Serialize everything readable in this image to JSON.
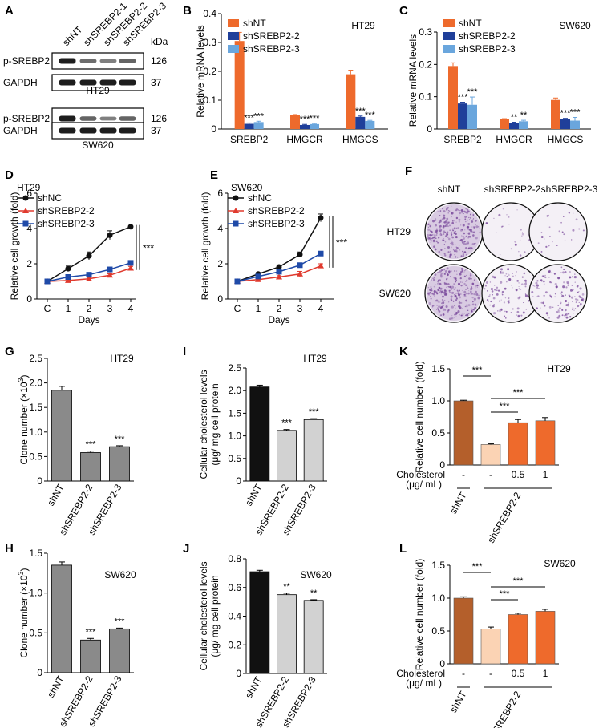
{
  "colors": {
    "orange": "#ee6a2c",
    "navy": "#1f3f9a",
    "light_blue": "#6aa6dd",
    "gray_bar": "#8a8a8a",
    "black_bar": "#111111",
    "light_gray_bar": "#d2d2d2",
    "brown_bar": "#b45f2b",
    "peach_bar": "#fbd3b4",
    "orange_bar": "#ee6a2c",
    "line_black": "#111111",
    "line_red": "#e03a2e",
    "line_blue": "#1f4aa8",
    "colony_purple": "#7a4a9c"
  },
  "panels": {
    "A": {
      "label": "A",
      "lanes": [
        "shNT",
        "shSREBP2-1",
        "shSREBP2-2",
        "shSREBP2-3"
      ],
      "kda_label": "kDa",
      "blots": [
        {
          "cell_line": "HT29",
          "rows": [
            {
              "label": "p-SREBP2",
              "kda": "126",
              "intensities": [
                1.0,
                0.55,
                0.45,
                0.6
              ]
            },
            {
              "label": "GAPDH",
              "kda": "37",
              "intensities": [
                1.0,
                1.0,
                1.0,
                1.0
              ]
            }
          ]
        },
        {
          "cell_line": "SW620",
          "rows": [
            {
              "label": "p-SREBP2",
              "kda": "126",
              "intensities": [
                1.0,
                0.6,
                0.45,
                0.6
              ]
            },
            {
              "label": "GAPDH",
              "kda": "37",
              "intensities": [
                1.0,
                1.0,
                1.0,
                1.0
              ]
            }
          ]
        }
      ]
    },
    "F": {
      "label": "F",
      "columns": [
        "shNT",
        "shSREBP2-2",
        "shSREBP2-3"
      ],
      "rows": [
        "HT29",
        "SW620"
      ],
      "densities": [
        [
          0.95,
          0.05,
          0.03
        ],
        [
          0.95,
          0.35,
          0.45
        ]
      ]
    }
  },
  "chart_data": [
    {
      "panel": "B",
      "type": "bar",
      "title": "HT29",
      "ylabel": "Relative mRNA levels",
      "ylim": [
        0,
        0.4
      ],
      "yticks": [
        "0",
        "0.1",
        "0.2",
        "0.3",
        "0.4"
      ],
      "categories": [
        "SREBP2",
        "HMGCR",
        "HMGCS"
      ],
      "legend": "top-left",
      "series": [
        {
          "name": "shNT",
          "color": "#ee6a2c",
          "values": [
            0.305,
            0.048,
            0.19
          ],
          "errors": [
            0.03,
            0.002,
            0.014
          ],
          "sig": [
            "",
            "",
            ""
          ]
        },
        {
          "name": "shSREBP2-2",
          "color": "#1f3f9a",
          "values": [
            0.018,
            0.014,
            0.042
          ],
          "errors": [
            0.003,
            0.002,
            0.003
          ],
          "sig": [
            "***",
            "***",
            "***"
          ]
        },
        {
          "name": "shSREBP2-3",
          "color": "#6aa6dd",
          "values": [
            0.024,
            0.017,
            0.028
          ],
          "errors": [
            0.003,
            0.002,
            0.002
          ],
          "sig": [
            "***",
            "***",
            "***"
          ]
        }
      ]
    },
    {
      "panel": "C",
      "type": "bar",
      "title": "SW620",
      "ylabel": "Relative mRNA levels",
      "ylim": [
        0,
        0.3
      ],
      "yticks": [
        "0",
        "0.1",
        "0.2",
        "0.3"
      ],
      "categories": [
        "SREBP2",
        "HMGCR",
        "HMGCS"
      ],
      "legend": "top-left",
      "series": [
        {
          "name": "shNT",
          "color": "#ee6a2c",
          "values": [
            0.195,
            0.03,
            0.09
          ],
          "errors": [
            0.01,
            0.002,
            0.006
          ],
          "sig": [
            "",
            "",
            ""
          ]
        },
        {
          "name": "shSREBP2-2",
          "color": "#1f3f9a",
          "values": [
            0.079,
            0.019,
            0.03
          ],
          "errors": [
            0.004,
            0.002,
            0.003
          ],
          "sig": [
            "***",
            "**",
            "***"
          ]
        },
        {
          "name": "shSREBP2-3",
          "color": "#6aa6dd",
          "values": [
            0.075,
            0.024,
            0.026
          ],
          "errors": [
            0.024,
            0.003,
            0.01
          ],
          "sig": [
            "***",
            "**",
            "***"
          ]
        }
      ]
    },
    {
      "panel": "D",
      "type": "line",
      "title": "HT29",
      "xlabel": "Days",
      "ylabel": "Relative cell growth (fold)",
      "x": [
        "C",
        "1",
        "2",
        "3",
        "4"
      ],
      "ylim": [
        0,
        6
      ],
      "yticks": [
        "0",
        "2",
        "4",
        "6"
      ],
      "legend": "top-left",
      "sig": "***",
      "series": [
        {
          "name": "shNC",
          "color": "#111111",
          "marker": "circle",
          "values": [
            1.0,
            1.72,
            2.45,
            3.62,
            4.1
          ],
          "errors": [
            0.05,
            0.15,
            0.22,
            0.25,
            0.15
          ]
        },
        {
          "name": "shSREBP2-2",
          "color": "#e03a2e",
          "marker": "triangle",
          "values": [
            1.0,
            1.05,
            1.15,
            1.35,
            1.75
          ],
          "errors": [
            0.03,
            0.05,
            0.06,
            0.08,
            0.1
          ]
        },
        {
          "name": "shSREBP2-3",
          "color": "#1f4aa8",
          "marker": "square",
          "values": [
            1.0,
            1.25,
            1.38,
            1.68,
            2.05
          ],
          "errors": [
            0.03,
            0.05,
            0.06,
            0.08,
            0.06
          ]
        }
      ]
    },
    {
      "panel": "E",
      "type": "line",
      "title": "SW620",
      "xlabel": "Days",
      "ylabel": "Relative cell growth (fold)",
      "x": [
        "C",
        "1",
        "2",
        "3",
        "4"
      ],
      "ylim": [
        0,
        6
      ],
      "yticks": [
        "0",
        "2",
        "4",
        "6"
      ],
      "legend": "top-left",
      "sig": "***",
      "series": [
        {
          "name": "shNC",
          "color": "#111111",
          "marker": "circle",
          "values": [
            1.0,
            1.42,
            1.82,
            2.52,
            4.6
          ],
          "errors": [
            0.04,
            0.08,
            0.1,
            0.15,
            0.22
          ]
        },
        {
          "name": "shSREBP2-2",
          "color": "#e03a2e",
          "marker": "triangle",
          "values": [
            1.0,
            1.1,
            1.25,
            1.42,
            1.88
          ],
          "errors": [
            0.03,
            0.05,
            0.08,
            0.15,
            0.12
          ]
        },
        {
          "name": "shSREBP2-3",
          "color": "#1f4aa8",
          "marker": "square",
          "values": [
            1.0,
            1.28,
            1.55,
            1.92,
            2.58
          ],
          "errors": [
            0.03,
            0.06,
            0.07,
            0.12,
            0.08
          ]
        }
      ]
    },
    {
      "panel": "G",
      "type": "bar",
      "title": "HT29",
      "ylabel": "Clone number (×10",
      "ylabel_sup": "3",
      "ylabel_end": ")",
      "ylim": [
        0,
        2.5
      ],
      "yticks": [
        "0",
        "0.5",
        "1.0",
        "1.5",
        "2.0",
        "2.5"
      ],
      "categories": [
        "shNT",
        "shSREBP2-2",
        "shSREBP2-3"
      ],
      "values": [
        1.85,
        0.58,
        0.7
      ],
      "errors": [
        0.08,
        0.03,
        0.02
      ],
      "colors": [
        "#8a8a8a",
        "#8a8a8a",
        "#8a8a8a"
      ],
      "sig": [
        "",
        "***",
        "***"
      ]
    },
    {
      "panel": "H",
      "type": "bar",
      "title": "SW620",
      "ylabel": "Clone number (×10",
      "ylabel_sup": "3",
      "ylabel_end": ")",
      "ylim": [
        0,
        1.5
      ],
      "yticks": [
        "0",
        "0.5",
        "1.0",
        "1.5"
      ],
      "categories": [
        "shNT",
        "shSREBP2-2",
        "shSREBP2-3"
      ],
      "values": [
        1.35,
        0.41,
        0.55
      ],
      "errors": [
        0.04,
        0.02,
        0.01
      ],
      "colors": [
        "#8a8a8a",
        "#8a8a8a",
        "#8a8a8a"
      ],
      "sig": [
        "",
        "***",
        "***"
      ]
    },
    {
      "panel": "I",
      "type": "bar",
      "title": "HT29",
      "ylabel": "Cellular cholesterol levels",
      "ylabel2": "(μg/ mg cell protein",
      "ylim": [
        0,
        2.5
      ],
      "yticks": [
        "0",
        "0.5",
        "1.0",
        "1.5",
        "2.0",
        "2.5"
      ],
      "categories": [
        "shNT",
        "shSREBP2-2",
        "shSREBP2-3"
      ],
      "values": [
        2.08,
        1.12,
        1.36
      ],
      "errors": [
        0.04,
        0.02,
        0.02
      ],
      "colors": [
        "#111111",
        "#d2d2d2",
        "#d2d2d2"
      ],
      "sig": [
        "",
        "***",
        "***"
      ]
    },
    {
      "panel": "J",
      "type": "bar",
      "title": "SW620",
      "ylabel": "Cellular cholesterol levels",
      "ylabel2": "(μg/ mg cell protein",
      "ylim": [
        0,
        0.8
      ],
      "yticks": [
        "0",
        "0.2",
        "0.4",
        "0.6",
        "0.8"
      ],
      "categories": [
        "shNT",
        "shSREBP2-2",
        "shSREBP2-3"
      ],
      "values": [
        0.71,
        0.55,
        0.51
      ],
      "errors": [
        0.01,
        0.01,
        0.005
      ],
      "colors": [
        "#111111",
        "#d2d2d2",
        "#d2d2d2"
      ],
      "sig": [
        "",
        "**",
        "**"
      ]
    },
    {
      "panel": "K",
      "type": "bar",
      "title": "HT29",
      "ylabel": "Relative cell number (fold)",
      "ylim": [
        0,
        1.5
      ],
      "yticks": [
        "0",
        "0.5",
        "1.0",
        "1.5"
      ],
      "categories": [
        "",
        "",
        "",
        ""
      ],
      "values": [
        1.0,
        0.32,
        0.66,
        0.69
      ],
      "errors": [
        0.01,
        0.01,
        0.05,
        0.05
      ],
      "colors": [
        "#b45f2b",
        "#fbd3b4",
        "#ee6a2c",
        "#ee6a2c"
      ],
      "cholesterol_label": "Cholesterol",
      "cholesterol_unit": "(μg/ mL)",
      "cholesterol_values": [
        "-",
        "-",
        "0.5",
        "1"
      ],
      "group_labels": [
        "shNT",
        "shSREBP2-2"
      ],
      "sig_pairs": [
        {
          "from": 0,
          "to": 1,
          "label": "***"
        },
        {
          "from": 1,
          "to": 2,
          "label": "***"
        },
        {
          "from": 1,
          "to": 3,
          "label": "***"
        }
      ]
    },
    {
      "panel": "L",
      "type": "bar",
      "title": "SW620",
      "ylabel": "Relative cell number (fold)",
      "ylim": [
        0,
        1.5
      ],
      "yticks": [
        "0",
        "0.5",
        "1.0",
        "1.5"
      ],
      "categories": [
        "",
        "",
        "",
        ""
      ],
      "values": [
        1.0,
        0.53,
        0.75,
        0.8
      ],
      "errors": [
        0.02,
        0.03,
        0.02,
        0.03
      ],
      "colors": [
        "#b45f2b",
        "#fbd3b4",
        "#ee6a2c",
        "#ee6a2c"
      ],
      "cholesterol_label": "Cholesterol",
      "cholesterol_unit": "(μg/ mL)",
      "cholesterol_values": [
        "-",
        "-",
        "0.5",
        "1"
      ],
      "group_labels": [
        "shNT",
        "shSREBP2-2"
      ],
      "sig_pairs": [
        {
          "from": 0,
          "to": 1,
          "label": "***"
        },
        {
          "from": 1,
          "to": 2,
          "label": "***"
        },
        {
          "from": 1,
          "to": 3,
          "label": "***"
        }
      ]
    }
  ]
}
